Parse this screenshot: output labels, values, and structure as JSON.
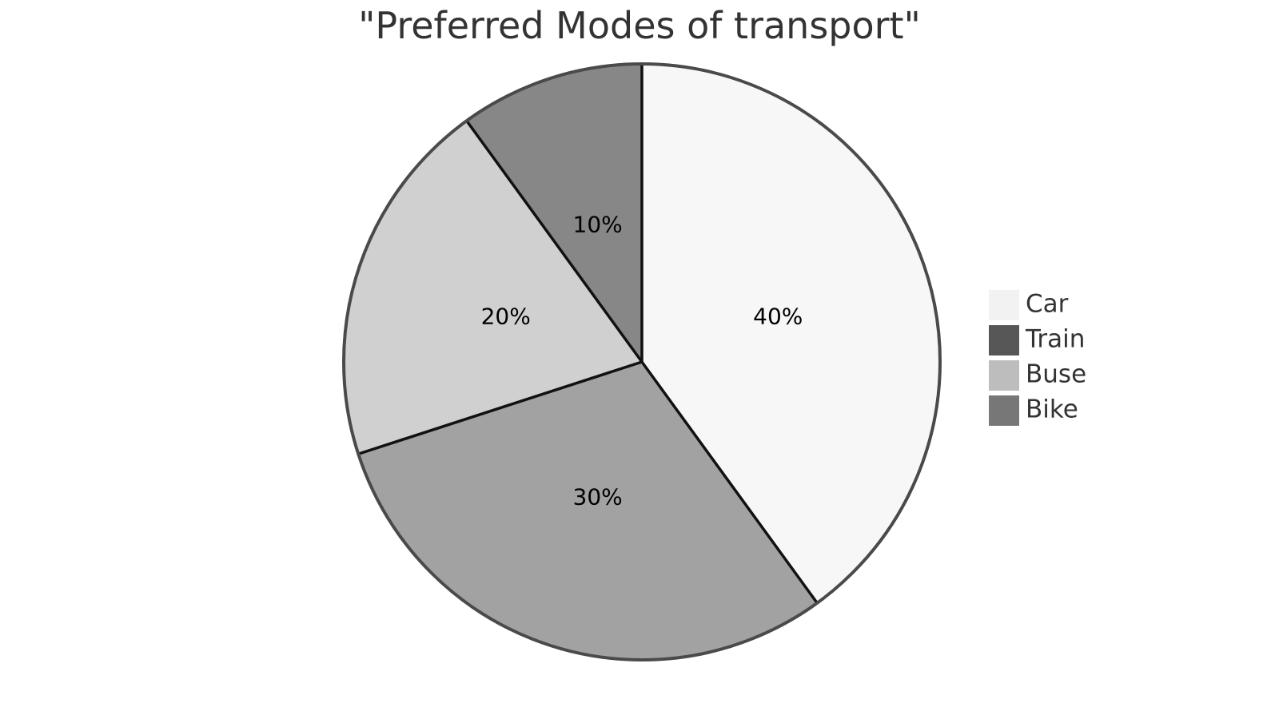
{
  "chart_data": {
    "type": "pie",
    "title": "\"Preferred Modes of transport\"",
    "slices": [
      {
        "label": "Car",
        "value": 40,
        "display": "40%",
        "color": "#f7f7f7"
      },
      {
        "label": "Bus",
        "value": 30,
        "display": "30%",
        "color": "#a2a2a2"
      },
      {
        "label": "",
        "value": 20,
        "display": "20%",
        "color": "#d0d0d0"
      },
      {
        "label": "",
        "value": 10,
        "display": "10%",
        "color": "#878787"
      }
    ],
    "legend": {
      "placement": "right",
      "entries": [
        {
          "label": "Car",
          "color": "#f2f2f2"
        },
        {
          "label": "Train",
          "color": "#575757"
        },
        {
          "label": "Buse",
          "color": "#bdbdbd"
        },
        {
          "label": "Bike",
          "color": "#777777"
        }
      ]
    },
    "start_angle_deg": 0,
    "direction": "clockwise",
    "outline_color": "#4a4a4a",
    "divider_color": "#111111"
  }
}
